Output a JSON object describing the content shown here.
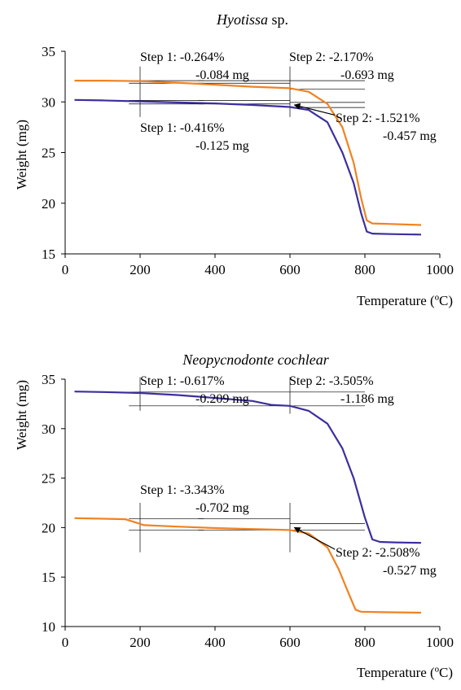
{
  "colors": {
    "orange": "#F08221",
    "blue": "#3B2F9E",
    "axis": "#000000",
    "guide": "#000000"
  },
  "chart_data": [
    {
      "type": "line",
      "title": "Hyotissa",
      "title_suffix": " sp.",
      "xlabel": "Temperature (ºC)",
      "ylabel": "Weight (mg)",
      "xlim": [
        0,
        1000
      ],
      "ylim": [
        15,
        35
      ],
      "xticks": [
        0,
        200,
        400,
        600,
        800,
        1000
      ],
      "yticks": [
        15,
        20,
        25,
        30,
        35
      ],
      "grid": false,
      "series": [
        {
          "color": "orange",
          "points": [
            [
              25,
              32.1
            ],
            [
              100,
              32.1
            ],
            [
              200,
              32.05
            ],
            [
              300,
              31.9
            ],
            [
              400,
              31.7
            ],
            [
              500,
              31.5
            ],
            [
              600,
              31.35
            ],
            [
              650,
              31.0
            ],
            [
              700,
              29.8
            ],
            [
              740,
              27.5
            ],
            [
              770,
              24.0
            ],
            [
              790,
              20.5
            ],
            [
              805,
              18.3
            ],
            [
              820,
              18.0
            ],
            [
              870,
              17.95
            ],
            [
              950,
              17.85
            ]
          ]
        },
        {
          "color": "blue",
          "points": [
            [
              25,
              30.2
            ],
            [
              100,
              30.15
            ],
            [
              200,
              30.05
            ],
            [
              300,
              29.95
            ],
            [
              400,
              29.85
            ],
            [
              500,
              29.7
            ],
            [
              600,
              29.5
            ],
            [
              650,
              29.2
            ],
            [
              700,
              28.0
            ],
            [
              740,
              25.0
            ],
            [
              770,
              22.0
            ],
            [
              790,
              19.0
            ],
            [
              805,
              17.2
            ],
            [
              820,
              17.0
            ],
            [
              870,
              16.95
            ],
            [
              950,
              16.9
            ]
          ]
        }
      ],
      "guides": [
        {
          "x": [
            170,
            370
          ],
          "y": 32.1
        },
        {
          "x": [
            170,
            370
          ],
          "y": 31.85
        },
        {
          "x": [
            170,
            370
          ],
          "y": 30.15
        },
        {
          "x": [
            170,
            370
          ],
          "y": 29.8
        },
        {
          "x": [
            355,
            600
          ],
          "y": 32.1
        },
        {
          "x": [
            355,
            600
          ],
          "y": 31.85
        },
        {
          "x": [
            355,
            600
          ],
          "y": 30.15
        },
        {
          "x": [
            355,
            600
          ],
          "y": 29.8
        },
        {
          "x": [
            600,
            800
          ],
          "y": 32.1
        },
        {
          "x": [
            600,
            800
          ],
          "y": 31.25
        },
        {
          "x": [
            600,
            800
          ],
          "y": 29.95
        },
        {
          "x": [
            600,
            800
          ],
          "y": 29.45
        }
      ],
      "vlines": [
        {
          "x": 200,
          "y": [
            28.5,
            33.5
          ]
        },
        {
          "x": 600,
          "y": [
            28.5,
            33.5
          ]
        }
      ],
      "annotations": [
        {
          "id": "h-s1-o",
          "line1": "Step 1: -0.264%",
          "line2": "-0.084 mg"
        },
        {
          "id": "h-s2-o",
          "line1": "Step 2: -2.170%",
          "line2": "-0.693 mg"
        },
        {
          "id": "h-s1-b",
          "line1": "Step 1: -0.416%",
          "line2": "-0.125 mg"
        },
        {
          "id": "h-s2-b",
          "line1": "Step 2: -1.521%",
          "line2": "-0.457 mg"
        }
      ],
      "arrow": {
        "from": [
          720,
          28.7
        ],
        "to": [
          612,
          29.7
        ]
      }
    },
    {
      "type": "line",
      "title": "Neopycnodonte cochlear",
      "title_suffix": "",
      "xlabel": "Temperature (ºC)",
      "ylabel": "Weight (mg)",
      "xlim": [
        0,
        1000
      ],
      "ylim": [
        10,
        35
      ],
      "xticks": [
        0,
        200,
        400,
        600,
        800,
        1000
      ],
      "yticks": [
        10,
        15,
        20,
        25,
        30,
        35
      ],
      "grid": false,
      "series": [
        {
          "color": "blue",
          "points": [
            [
              25,
              33.75
            ],
            [
              100,
              33.7
            ],
            [
              200,
              33.6
            ],
            [
              300,
              33.4
            ],
            [
              400,
              33.1
            ],
            [
              500,
              32.8
            ],
            [
              550,
              32.4
            ],
            [
              600,
              32.3
            ],
            [
              650,
              31.8
            ],
            [
              700,
              30.5
            ],
            [
              740,
              28.0
            ],
            [
              770,
              25.0
            ],
            [
              800,
              21.0
            ],
            [
              820,
              18.8
            ],
            [
              840,
              18.55
            ],
            [
              880,
              18.5
            ],
            [
              950,
              18.45
            ]
          ]
        },
        {
          "color": "orange",
          "points": [
            [
              25,
              20.95
            ],
            [
              100,
              20.9
            ],
            [
              160,
              20.85
            ],
            [
              190,
              20.5
            ],
            [
              210,
              20.25
            ],
            [
              300,
              20.1
            ],
            [
              400,
              19.95
            ],
            [
              500,
              19.85
            ],
            [
              600,
              19.75
            ],
            [
              650,
              19.4
            ],
            [
              700,
              18.0
            ],
            [
              730,
              15.8
            ],
            [
              755,
              13.5
            ],
            [
              775,
              11.7
            ],
            [
              790,
              11.5
            ],
            [
              850,
              11.45
            ],
            [
              950,
              11.4
            ]
          ]
        }
      ],
      "guides": [
        {
          "x": [
            170,
            370
          ],
          "y": 33.7
        },
        {
          "x": [
            170,
            370
          ],
          "y": 32.3
        },
        {
          "x": [
            170,
            370
          ],
          "y": 20.9
        },
        {
          "x": [
            170,
            370
          ],
          "y": 19.75
        },
        {
          "x": [
            355,
            600
          ],
          "y": 33.7
        },
        {
          "x": [
            355,
            600
          ],
          "y": 32.3
        },
        {
          "x": [
            355,
            600
          ],
          "y": 20.9
        },
        {
          "x": [
            355,
            600
          ],
          "y": 19.75
        },
        {
          "x": [
            600,
            800
          ],
          "y": 33.7
        },
        {
          "x": [
            600,
            800
          ],
          "y": 32.3
        },
        {
          "x": [
            600,
            800
          ],
          "y": 20.4
        },
        {
          "x": [
            600,
            800
          ],
          "y": 19.75
        }
      ],
      "vlines": [
        {
          "x": 200,
          "y": [
            31.8,
            35.2
          ]
        },
        {
          "x": 600,
          "y": [
            31.5,
            35.2
          ]
        },
        {
          "x": 200,
          "y": [
            17.5,
            22.5
          ]
        },
        {
          "x": 600,
          "y": [
            17.5,
            22.5
          ]
        }
      ],
      "annotations": [
        {
          "id": "n-s1-b",
          "line1": "Step 1: -0.617%",
          "line2": "-0.209 mg"
        },
        {
          "id": "n-s2-b",
          "line1": "Step 2: -3.505%",
          "line2": "-1.186 mg"
        },
        {
          "id": "n-s1-o",
          "line1": "Step 1: -3.343%",
          "line2": "-0.702 mg"
        },
        {
          "id": "n-s2-o",
          "line1": "Step 2: -2.508%",
          "line2": "-0.527 mg"
        }
      ],
      "arrow": {
        "from": [
          720,
          17.8
        ],
        "to": [
          612,
          20.0
        ]
      }
    }
  ]
}
